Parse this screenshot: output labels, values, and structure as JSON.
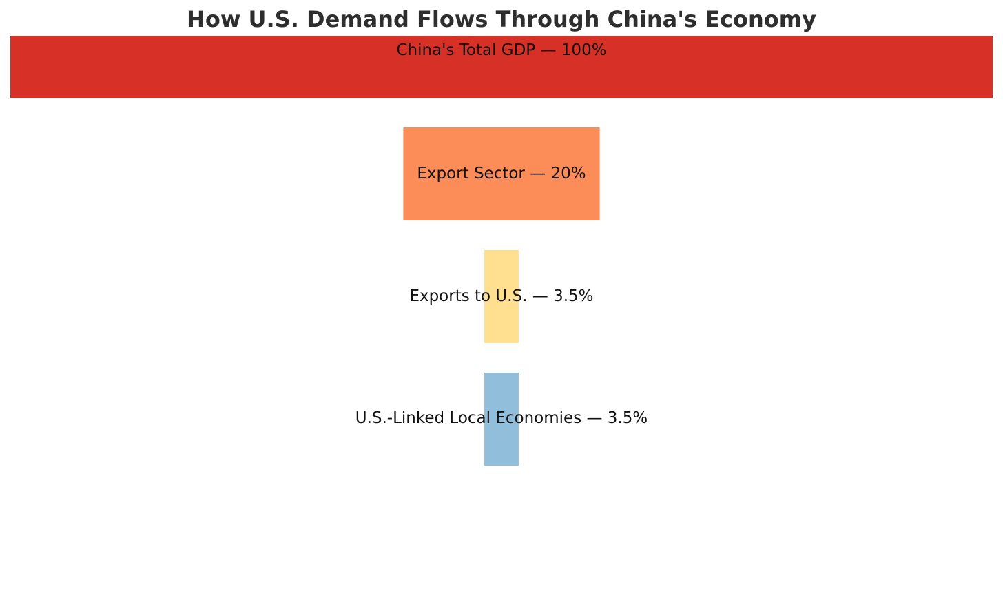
{
  "chart_data": {
    "type": "bar",
    "orientation": "horizontal",
    "layout": "funnel",
    "title": "How U.S. Demand Flows Through China's Economy",
    "xlabel": "",
    "ylabel": "",
    "xlim": [
      0,
      100
    ],
    "grid": false,
    "categories": [
      "China's Total GDP",
      "Export Sector",
      "Exports to U.S.",
      "U.S.-Linked Local Economies"
    ],
    "values": [
      100,
      20,
      3.5,
      3.5
    ],
    "data_labels": [
      "China's Total GDP — 100%",
      "Export Sector — 20%",
      "Exports to U.S. — 3.5%",
      "U.S.-Linked Local Economies — 3.5%"
    ],
    "colors": [
      "#d73027",
      "#fc8d59",
      "#fee090",
      "#91bfdb"
    ]
  }
}
